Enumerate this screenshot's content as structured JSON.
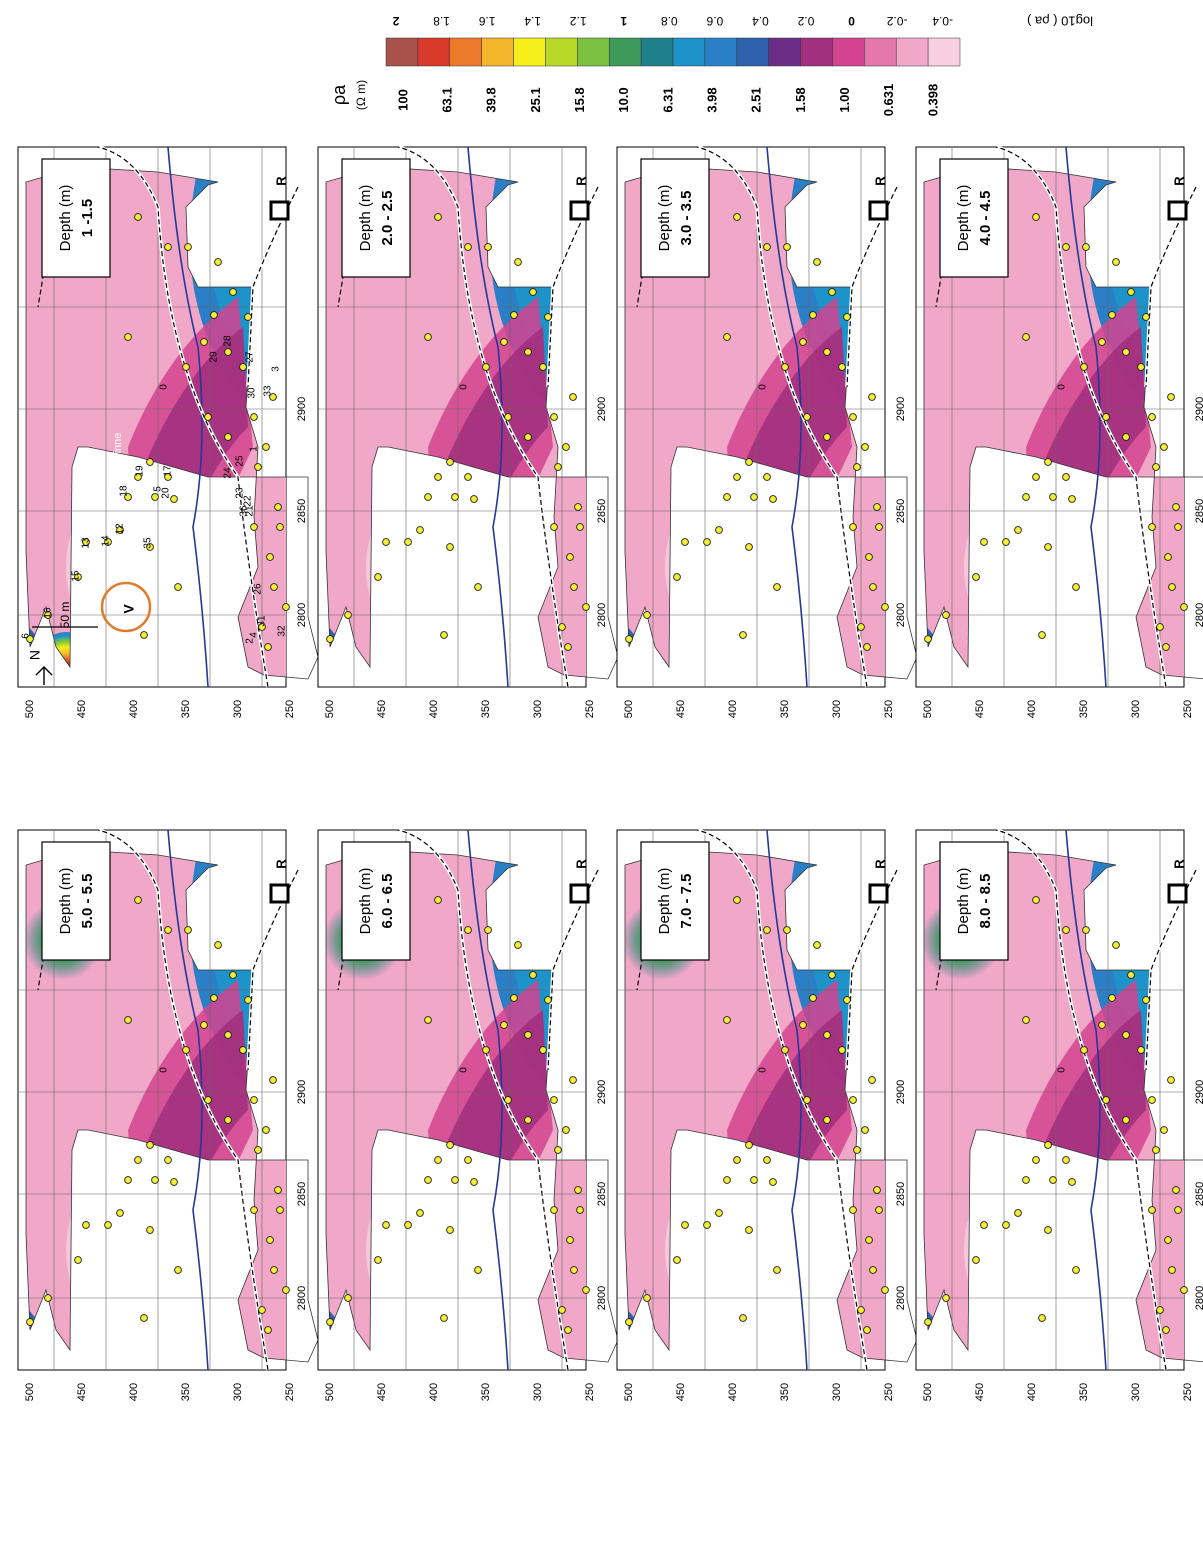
{
  "panels": [
    {
      "depth_label": "Depth (m)",
      "depth_range": "1 -1.5"
    },
    {
      "depth_label": "Depth (m)",
      "depth_range": "2.0 - 2.5"
    },
    {
      "depth_label": "Depth (m)",
      "depth_range": "3.0 - 3.5"
    },
    {
      "depth_label": "Depth (m)",
      "depth_range": "4.0 - 4.5"
    },
    {
      "depth_label": "Depth (m)",
      "depth_range": "5.0 - 5.5"
    },
    {
      "depth_label": "Depth (m)",
      "depth_range": "6.0 - 6.5"
    },
    {
      "depth_label": "Depth (m)",
      "depth_range": "7.0 - 7.5"
    },
    {
      "depth_label": "Depth (m)",
      "depth_range": "8.0 - 8.5"
    }
  ],
  "axes": {
    "easting_ticks": [
      "2800",
      "2850",
      "2900"
    ],
    "northing_ticks": [
      "500",
      "450",
      "400",
      "350",
      "300",
      "250"
    ]
  },
  "annotations": {
    "north_arrow": "N",
    "scale_bar": "50 m",
    "river": "Rinne",
    "feature_v": "V",
    "marker_r": "R",
    "contour_zero": "0",
    "point_numbers": [
      "6",
      "16",
      "15",
      "13",
      "14",
      "12",
      "35",
      "5",
      "20",
      "17",
      "18",
      "19",
      "4",
      "31",
      "32",
      "2",
      "26",
      "21",
      "22",
      "23",
      "36",
      "24",
      "25",
      "1",
      "29",
      "28",
      "27",
      "30",
      "33",
      "3"
    ]
  },
  "legend": {
    "rho_symbol": "ρa",
    "unit": "(Ω m)",
    "log_label": "log10 ( ρa )",
    "values": [
      "100",
      "63.1",
      "39.8",
      "25.1",
      "15.8",
      "10.0",
      "6.31",
      "3.98",
      "2.51",
      "1.58",
      "1.00",
      "0.631",
      "0.398"
    ],
    "log_ticks": [
      "2",
      "1.8",
      "1.6",
      "1.4",
      "1.2",
      "1",
      "0.8",
      "0.6",
      "0.4",
      "0.2",
      "0",
      "-0.2",
      "-0.4"
    ],
    "colors": [
      "#a8524b",
      "#d93a2a",
      "#ee7a2b",
      "#f5b52c",
      "#f4ef1a",
      "#b9d82a",
      "#7cc242",
      "#3e9a5a",
      "#1f7f8a",
      "#1d93c9",
      "#2a7fc7",
      "#2f62ae",
      "#6b2d86",
      "#a2307e",
      "#d3438f",
      "#e478ad",
      "#f0a7c8",
      "#f8cfe0"
    ]
  }
}
